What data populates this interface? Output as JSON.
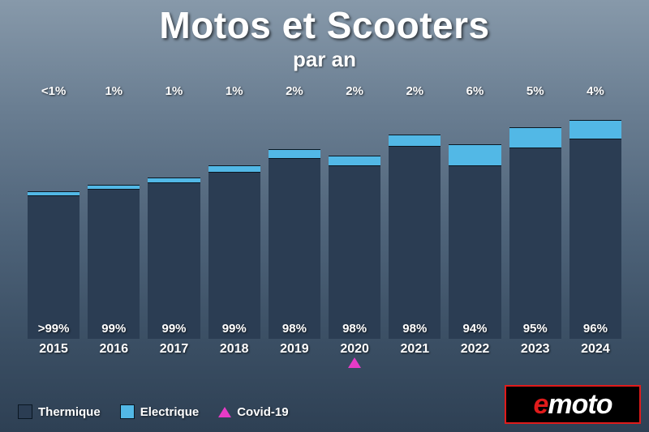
{
  "title": "Motos et Scooters",
  "subtitle": "par an",
  "chart": {
    "type": "stacked-bar",
    "background_gradient": [
      "#8799aa",
      "#2e4054"
    ],
    "series_colors": {
      "thermique": "#2b3d53",
      "electrique": "#52b8e6"
    },
    "marker_color": "#e83bc6",
    "bar_border_color": "#0a1722",
    "label_fontsize": 15,
    "year_fontsize": 16,
    "bars": [
      {
        "year": "2015",
        "height_pct": 62,
        "elec_seg_pct": 2.5,
        "elec_label": "<1%",
        "therm_label": ">99%",
        "covid": false
      },
      {
        "year": "2016",
        "height_pct": 65,
        "elec_seg_pct": 3.0,
        "elec_label": "1%",
        "therm_label": "99%",
        "covid": false
      },
      {
        "year": "2017",
        "height_pct": 68,
        "elec_seg_pct": 3.0,
        "elec_label": "1%",
        "therm_label": "99%",
        "covid": false
      },
      {
        "year": "2018",
        "height_pct": 73,
        "elec_seg_pct": 3.5,
        "elec_label": "1%",
        "therm_label": "99%",
        "covid": false
      },
      {
        "year": "2019",
        "height_pct": 80,
        "elec_seg_pct": 5.0,
        "elec_label": "2%",
        "therm_label": "98%",
        "covid": false
      },
      {
        "year": "2020",
        "height_pct": 77,
        "elec_seg_pct": 5.0,
        "elec_label": "2%",
        "therm_label": "98%",
        "covid": true
      },
      {
        "year": "2021",
        "height_pct": 86,
        "elec_seg_pct": 5.5,
        "elec_label": "2%",
        "therm_label": "98%",
        "covid": false
      },
      {
        "year": "2022",
        "height_pct": 82,
        "elec_seg_pct": 11.0,
        "elec_label": "6%",
        "therm_label": "94%",
        "covid": false
      },
      {
        "year": "2023",
        "height_pct": 89,
        "elec_seg_pct": 9.5,
        "elec_label": "5%",
        "therm_label": "95%",
        "covid": false
      },
      {
        "year": "2024",
        "height_pct": 92,
        "elec_seg_pct": 8.5,
        "elec_label": "4%",
        "therm_label": "96%",
        "covid": false
      }
    ]
  },
  "legend": {
    "thermique": "Thermique",
    "electrique": "Electrique",
    "covid": "Covid-19"
  },
  "logo": {
    "part1": "e",
    "part2": "moto",
    "border_color": "#e01b1b",
    "bg": "#000000"
  }
}
